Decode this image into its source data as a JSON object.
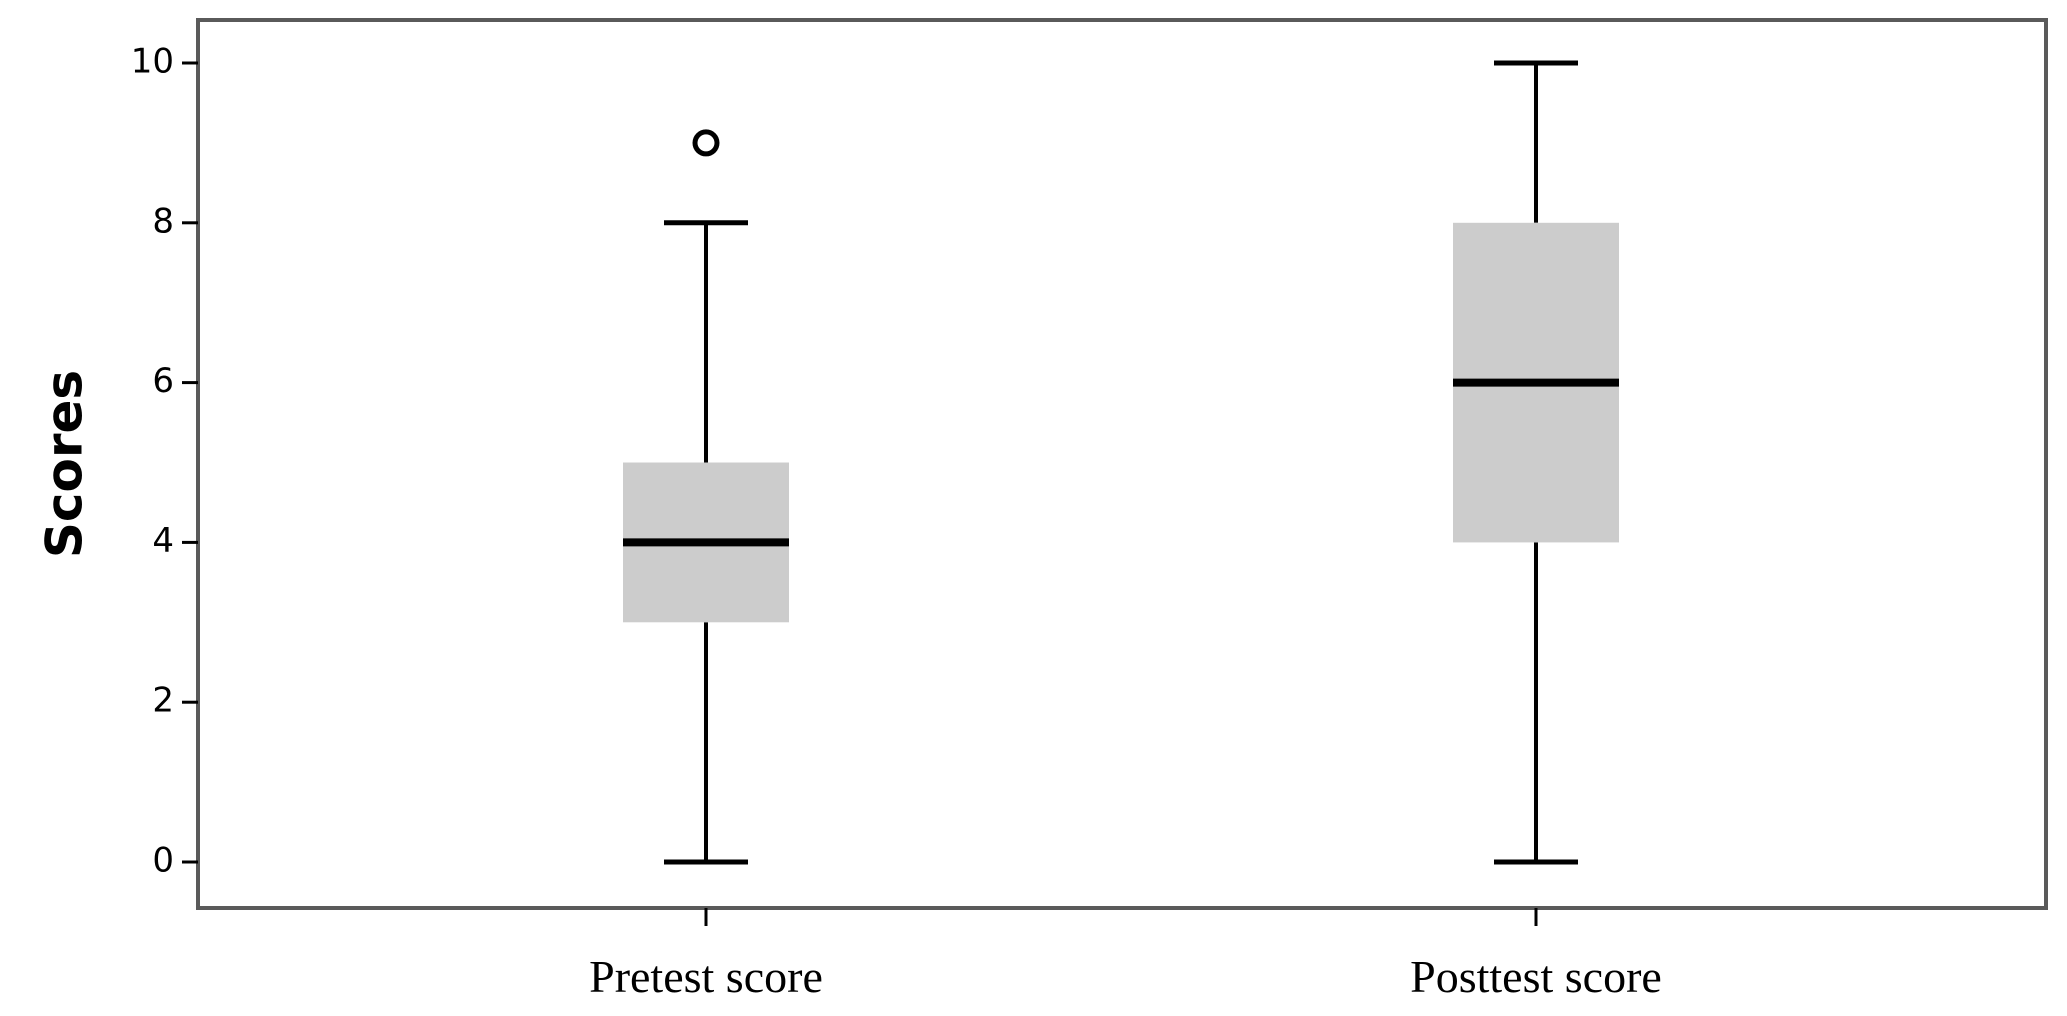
{
  "chart_data": {
    "type": "box",
    "title": "",
    "xlabel": "",
    "ylabel": "Scores",
    "ylim": [
      -0.5,
      10.6
    ],
    "yticks": [
      0,
      2,
      4,
      6,
      8,
      10
    ],
    "grid": false,
    "legend": "none",
    "categories": [
      "Pretest score",
      "Posttest score"
    ],
    "boxes": [
      {
        "category": "Pretest score",
        "min": 0,
        "q1": 3,
        "median": 4,
        "q3": 5,
        "max": 8,
        "outliers": [
          9
        ]
      },
      {
        "category": "Posttest score",
        "min": 0,
        "q1": 4,
        "median": 6,
        "q3": 8,
        "max": 10,
        "outliers": []
      }
    ],
    "colors": {
      "box_fill": "#cccccc",
      "median": "#000000",
      "whisker": "#000000",
      "frame": "#5a5a5a"
    }
  }
}
